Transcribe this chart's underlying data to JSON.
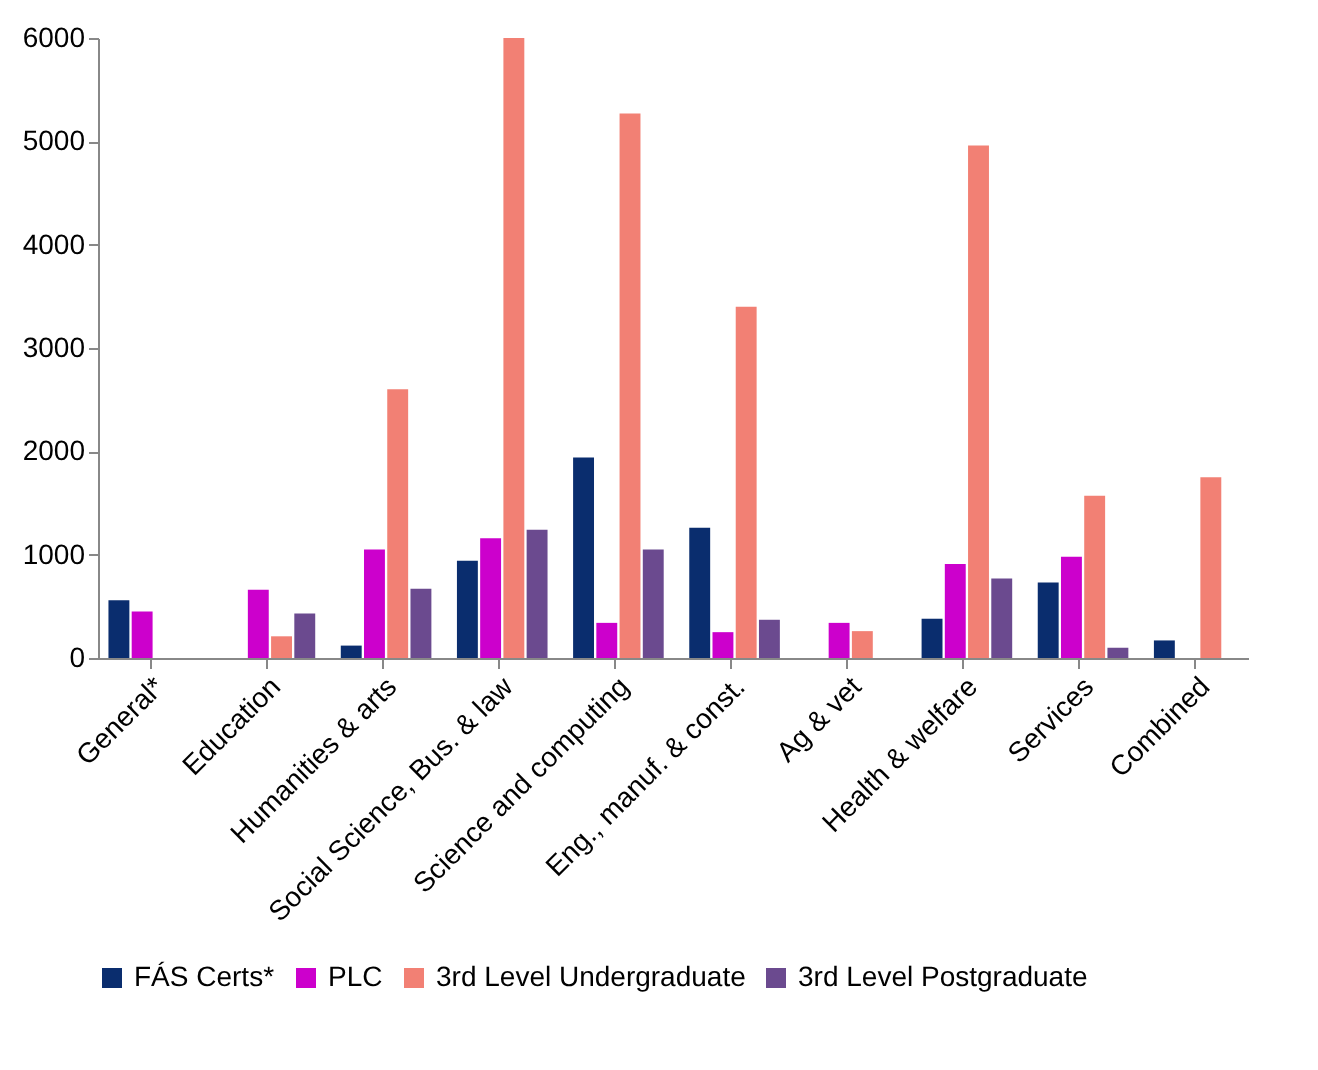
{
  "chart_data": {
    "type": "bar",
    "categories": [
      "General*",
      "Education",
      "Humanities & arts",
      "Social Science, Bus. & law",
      "Science and computing",
      "Eng., manuf. & const.",
      "Ag & vet",
      "Health & welfare",
      "Services",
      "Combined"
    ],
    "series": [
      {
        "name": "FÁS Certs*",
        "color": "#0a2d6e",
        "values": [
          560,
          null,
          120,
          940,
          1940,
          1260,
          null,
          380,
          730,
          170
        ]
      },
      {
        "name": "PLC",
        "color": "#cc00cc",
        "values": [
          450,
          660,
          1050,
          1160,
          340,
          250,
          340,
          910,
          980,
          null
        ]
      },
      {
        "name": "3rd Level Undergraduate",
        "color": "#f28074",
        "values": [
          null,
          210,
          2600,
          6000,
          5270,
          3400,
          260,
          4960,
          1570,
          1750
        ]
      },
      {
        "name": "3rd Level Postgraduate",
        "color": "#6b4a8f",
        "values": [
          null,
          430,
          670,
          1240,
          1050,
          370,
          null,
          770,
          100,
          null
        ]
      }
    ],
    "ylim": [
      0,
      6000
    ],
    "yticks": [
      0,
      1000,
      2000,
      3000,
      4000,
      5000,
      6000
    ],
    "grid": false,
    "legend": "bottom"
  }
}
